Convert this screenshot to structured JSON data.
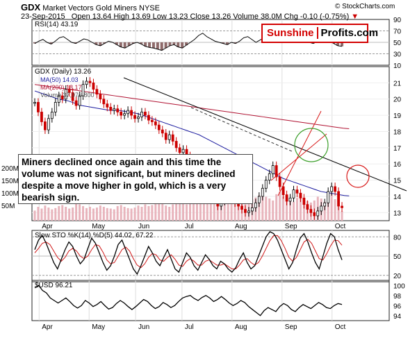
{
  "header": {
    "symbol": "GDX",
    "name": "Market Vectors Gold Miners",
    "exchange": "NYSE",
    "copyright": "© StockCharts.com",
    "date": "23-Sep-2015",
    "open_label": "Open",
    "open": "13.64",
    "high_label": "High",
    "high": "13.69",
    "low_label": "Low",
    "low": "13.23",
    "close_label": "Close",
    "close": "13.26",
    "volume_label": "Volume",
    "volume": "38.0M",
    "chg_label": "Chg",
    "chg": "-0.10 (-0.75%)",
    "down_marker": "▼"
  },
  "logo": {
    "part1": "Sunshine",
    "part2": "Profits.com"
  },
  "annotation": "Miners declined once again and this time the volume was not significant, but miners declined despite a move higher in gold, which is a very bearish sign.",
  "colors": {
    "up": "#000000",
    "down": "#cc0000",
    "ma50": "#1a1a9e",
    "ma200": "#b01030",
    "volume": "#e8b4bc",
    "stoK": "#000000",
    "stoD": "#d01818",
    "rsi_fill": "#8e6a6a",
    "circle_green": "#3a9e28",
    "circle_red": "#d81818"
  },
  "chart_data": [
    {
      "type": "line",
      "title": "RSI(14) 43.19",
      "series": [
        {
          "name": "RSI(14)",
          "values": [
            48,
            52,
            55,
            50,
            47,
            52,
            58,
            60,
            55,
            50,
            48,
            52,
            56,
            54,
            50,
            46,
            44,
            48,
            52,
            50,
            46,
            42,
            40,
            44,
            48,
            50,
            47,
            43,
            41,
            40,
            38,
            36,
            40,
            44,
            46,
            42,
            40,
            45,
            50,
            55,
            62,
            66,
            60,
            56,
            52,
            50,
            48,
            46,
            50,
            48,
            52,
            58,
            60,
            55,
            50,
            54,
            58,
            62,
            65,
            60,
            55,
            50,
            52,
            56,
            60,
            58,
            54,
            50,
            48,
            52,
            56,
            58,
            54,
            48,
            44,
            43
          ]
        }
      ],
      "ylim": [
        10,
        90
      ],
      "yticks": [
        "90",
        "70",
        "50",
        "30",
        "10"
      ]
    },
    {
      "type": "candlestick",
      "title": "GDX (Daily) 13.26",
      "legend": [
        "MA(50) 14.03",
        "MA(200) 18.17",
        "Volume 37,976,800"
      ],
      "xticks": [
        "Apr",
        "May",
        "Jun",
        "Jul",
        "Aug",
        "Sep",
        "Oct"
      ],
      "yticks": [
        "21",
        "20",
        "19",
        "18",
        "17",
        "16",
        "15",
        "14",
        "13"
      ],
      "volume_ticks": [
        "200M",
        "150M",
        "100M",
        "50M"
      ],
      "ylim": [
        12.5,
        22
      ],
      "close": [
        19.8,
        19.2,
        18.6,
        18.1,
        18.8,
        19.2,
        19.8,
        20.2,
        20.0,
        20.6,
        20.4,
        19.9,
        19.6,
        20.2,
        20.9,
        21.1,
        21.0,
        20.6,
        20.3,
        20.0,
        19.7,
        19.5,
        19.3,
        19.4,
        19.2,
        19.0,
        19.1,
        19.3,
        19.0,
        18.8,
        18.9,
        19.2,
        19.0,
        18.7,
        18.6,
        18.4,
        18.1,
        17.9,
        17.5,
        17.8,
        17.4,
        17.0,
        16.7,
        16.9,
        16.5,
        16.2,
        15.8,
        15.4,
        15.0,
        14.7,
        14.4,
        14.1,
        13.8,
        13.4,
        13.7,
        14.0,
        14.2,
        13.9,
        13.6,
        13.4,
        13.2,
        13.0,
        13.1,
        13.3,
        13.6,
        14.0,
        14.5,
        15.0,
        15.4,
        15.9,
        15.2,
        14.6,
        14.1,
        13.7,
        13.9,
        14.4,
        14.2,
        13.9,
        13.5,
        13.2,
        13.0,
        12.8,
        13.1,
        13.4,
        13.6,
        14.3,
        14.6,
        14.3,
        13.4,
        13.3
      ],
      "ma50": [
        20.5,
        20.4,
        20.3,
        20.2,
        20.1,
        20.0,
        19.95,
        19.9,
        19.8,
        19.7,
        19.6,
        19.55,
        19.5,
        19.45,
        19.4,
        19.35,
        19.3,
        19.3,
        19.3,
        19.25,
        19.2,
        19.15,
        19.1,
        19.0,
        18.9,
        18.8,
        18.7,
        18.6,
        18.5,
        18.4,
        18.3,
        18.2,
        18.1,
        18.0,
        17.9,
        17.8,
        17.65,
        17.5,
        17.35,
        17.2,
        17.05,
        16.9,
        16.75,
        16.6,
        16.45,
        16.3,
        16.15,
        16.0,
        15.85,
        15.7,
        15.55,
        15.4,
        15.25,
        15.1,
        15.0,
        14.9,
        14.8,
        14.7,
        14.6,
        14.5,
        14.4,
        14.3,
        14.25,
        14.2,
        14.15,
        14.1,
        14.05,
        14.03
      ],
      "ma200": [
        20.9,
        20.85,
        20.8,
        20.75,
        20.7,
        20.65,
        20.6,
        20.55,
        20.5,
        20.45,
        20.4,
        20.35,
        20.3,
        20.25,
        20.2,
        20.15,
        20.1,
        20.05,
        20.0,
        19.95,
        19.9,
        19.85,
        19.8,
        19.75,
        19.7,
        19.65,
        19.6,
        19.55,
        19.5,
        19.45,
        19.4,
        19.35,
        19.3,
        19.25,
        19.2,
        19.15,
        19.1,
        19.05,
        19.0,
        18.95,
        18.9,
        18.85,
        18.8,
        18.75,
        18.7,
        18.65,
        18.6,
        18.55,
        18.5,
        18.45,
        18.4,
        18.35,
        18.3,
        18.25,
        18.2,
        18.17
      ],
      "volume": [
        40,
        55,
        48,
        60,
        52,
        45,
        50,
        58,
        62,
        55,
        48,
        52,
        70,
        65,
        58,
        50,
        55,
        48,
        52,
        60,
        55,
        50,
        48,
        45,
        58,
        62,
        55,
        50,
        48,
        52,
        60,
        55,
        65,
        58,
        62,
        70,
        75,
        68,
        60,
        55,
        65,
        72,
        78,
        70,
        65,
        80,
        75,
        85,
        90,
        82,
        78,
        95,
        88,
        80,
        75,
        70,
        85,
        90,
        95,
        100,
        88,
        80,
        75,
        85,
        92,
        100,
        110,
        95,
        88,
        80,
        105,
        115,
        95,
        85,
        80,
        75,
        90,
        100,
        85,
        78,
        72,
        80,
        95,
        88,
        75,
        90,
        110,
        85,
        60,
        38
      ]
    },
    {
      "type": "line",
      "title": "Slow STO %K(14) %D(5) 44.02, 67.22",
      "series": [
        {
          "name": "%K",
          "values": [
            60,
            75,
            82,
            70,
            55,
            40,
            30,
            45,
            60,
            72,
            65,
            50,
            38,
            45,
            62,
            78,
            70,
            55,
            40,
            28,
            35,
            50,
            68,
            75,
            60,
            45,
            30,
            22,
            35,
            50,
            65,
            55,
            42,
            35,
            48,
            60,
            45,
            30,
            25,
            40,
            55,
            48,
            35,
            28,
            40,
            52,
            45,
            35,
            30,
            42,
            38,
            30,
            25,
            32,
            45,
            55,
            40,
            30,
            35,
            50,
            65,
            80,
            88,
            85,
            75,
            60,
            45,
            30,
            40,
            60,
            78,
            85,
            72,
            55,
            40,
            30,
            50,
            70,
            85,
            80,
            60,
            44
          ]
        },
        {
          "name": "%D",
          "values": [
            55,
            62,
            70,
            72,
            68,
            58,
            48,
            42,
            48,
            58,
            62,
            58,
            50,
            46,
            50,
            60,
            68,
            66,
            56,
            44,
            38,
            40,
            50,
            60,
            64,
            58,
            46,
            36,
            32,
            38,
            48,
            54,
            52,
            44,
            42,
            48,
            52,
            45,
            36,
            34,
            42,
            46,
            42,
            36,
            36,
            42,
            44,
            40,
            36,
            36,
            38,
            34,
            30,
            30,
            36,
            44,
            46,
            40,
            36,
            40,
            50,
            62,
            74,
            82,
            82,
            74,
            62,
            48,
            42,
            48,
            60,
            72,
            76,
            70,
            58,
            46,
            44,
            54,
            66,
            75,
            74,
            67
          ]
        }
      ],
      "ylim": [
        10,
        90
      ],
      "yticks": [
        "80",
        "50",
        "20"
      ]
    },
    {
      "type": "line",
      "title": "$USD 96.21",
      "series": [
        {
          "name": "$USD",
          "values": [
            99.5,
            100,
            99,
            98.5,
            97.5,
            97,
            96.5,
            97,
            97.5,
            96.8,
            96,
            95.5,
            96,
            97,
            96.5,
            95.8,
            96.2,
            96.8,
            96,
            95.3,
            95.6,
            96.4,
            97,
            96.5,
            95.8,
            95.2,
            95.8,
            96.5,
            97.2,
            96.8,
            96,
            95.4,
            95.8,
            96.6,
            96.2,
            95.6,
            96,
            96.8,
            97.5,
            97.8,
            98,
            97.4,
            97,
            97.6,
            98,
            97.5,
            96.8,
            97.2,
            97.8,
            97.2,
            96.5,
            96,
            96.4,
            97,
            96.6,
            95.8,
            95.2,
            94.6,
            94,
            95,
            95.6,
            95.2,
            94.8,
            95.8,
            96.4,
            96,
            95.2,
            94.8,
            95.6,
            96.2,
            95.8,
            95.4,
            96,
            96.6,
            96.2,
            95.6,
            95.4,
            96,
            96.4,
            96.21
          ]
        }
      ],
      "ylim": [
        93,
        101
      ],
      "yticks": [
        "100",
        "98",
        "96",
        "94"
      ]
    }
  ]
}
